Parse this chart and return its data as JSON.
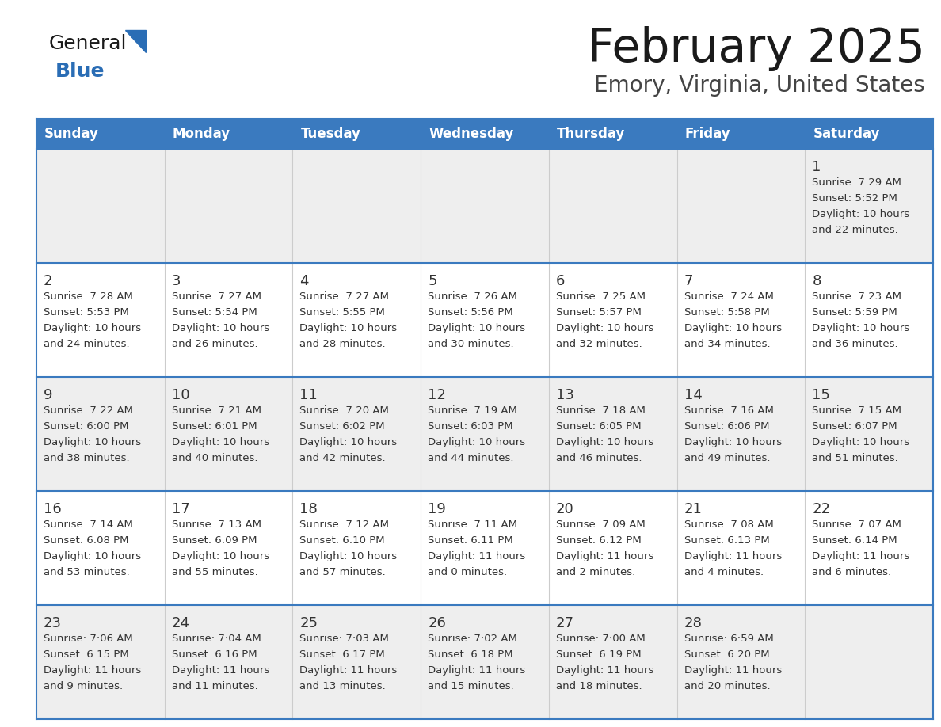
{
  "title": "February 2025",
  "subtitle": "Emory, Virginia, United States",
  "header_bg": "#3a7abf",
  "header_text_color": "#ffffff",
  "row_bg_odd": "#eeeeee",
  "row_bg_even": "#ffffff",
  "border_color": "#3a7abf",
  "cell_border_color": "#aaaaaa",
  "day_names": [
    "Sunday",
    "Monday",
    "Tuesday",
    "Wednesday",
    "Thursday",
    "Friday",
    "Saturday"
  ],
  "days": [
    {
      "day": 1,
      "col": 6,
      "row": 0,
      "sunrise": "7:29 AM",
      "sunset": "5:52 PM",
      "daylight": "10 hours and 22 minutes."
    },
    {
      "day": 2,
      "col": 0,
      "row": 1,
      "sunrise": "7:28 AM",
      "sunset": "5:53 PM",
      "daylight": "10 hours and 24 minutes."
    },
    {
      "day": 3,
      "col": 1,
      "row": 1,
      "sunrise": "7:27 AM",
      "sunset": "5:54 PM",
      "daylight": "10 hours and 26 minutes."
    },
    {
      "day": 4,
      "col": 2,
      "row": 1,
      "sunrise": "7:27 AM",
      "sunset": "5:55 PM",
      "daylight": "10 hours and 28 minutes."
    },
    {
      "day": 5,
      "col": 3,
      "row": 1,
      "sunrise": "7:26 AM",
      "sunset": "5:56 PM",
      "daylight": "10 hours and 30 minutes."
    },
    {
      "day": 6,
      "col": 4,
      "row": 1,
      "sunrise": "7:25 AM",
      "sunset": "5:57 PM",
      "daylight": "10 hours and 32 minutes."
    },
    {
      "day": 7,
      "col": 5,
      "row": 1,
      "sunrise": "7:24 AM",
      "sunset": "5:58 PM",
      "daylight": "10 hours and 34 minutes."
    },
    {
      "day": 8,
      "col": 6,
      "row": 1,
      "sunrise": "7:23 AM",
      "sunset": "5:59 PM",
      "daylight": "10 hours and 36 minutes."
    },
    {
      "day": 9,
      "col": 0,
      "row": 2,
      "sunrise": "7:22 AM",
      "sunset": "6:00 PM",
      "daylight": "10 hours and 38 minutes."
    },
    {
      "day": 10,
      "col": 1,
      "row": 2,
      "sunrise": "7:21 AM",
      "sunset": "6:01 PM",
      "daylight": "10 hours and 40 minutes."
    },
    {
      "day": 11,
      "col": 2,
      "row": 2,
      "sunrise": "7:20 AM",
      "sunset": "6:02 PM",
      "daylight": "10 hours and 42 minutes."
    },
    {
      "day": 12,
      "col": 3,
      "row": 2,
      "sunrise": "7:19 AM",
      "sunset": "6:03 PM",
      "daylight": "10 hours and 44 minutes."
    },
    {
      "day": 13,
      "col": 4,
      "row": 2,
      "sunrise": "7:18 AM",
      "sunset": "6:05 PM",
      "daylight": "10 hours and 46 minutes."
    },
    {
      "day": 14,
      "col": 5,
      "row": 2,
      "sunrise": "7:16 AM",
      "sunset": "6:06 PM",
      "daylight": "10 hours and 49 minutes."
    },
    {
      "day": 15,
      "col": 6,
      "row": 2,
      "sunrise": "7:15 AM",
      "sunset": "6:07 PM",
      "daylight": "10 hours and 51 minutes."
    },
    {
      "day": 16,
      "col": 0,
      "row": 3,
      "sunrise": "7:14 AM",
      "sunset": "6:08 PM",
      "daylight": "10 hours and 53 minutes."
    },
    {
      "day": 17,
      "col": 1,
      "row": 3,
      "sunrise": "7:13 AM",
      "sunset": "6:09 PM",
      "daylight": "10 hours and 55 minutes."
    },
    {
      "day": 18,
      "col": 2,
      "row": 3,
      "sunrise": "7:12 AM",
      "sunset": "6:10 PM",
      "daylight": "10 hours and 57 minutes."
    },
    {
      "day": 19,
      "col": 3,
      "row": 3,
      "sunrise": "7:11 AM",
      "sunset": "6:11 PM",
      "daylight": "11 hours and 0 minutes."
    },
    {
      "day": 20,
      "col": 4,
      "row": 3,
      "sunrise": "7:09 AM",
      "sunset": "6:12 PM",
      "daylight": "11 hours and 2 minutes."
    },
    {
      "day": 21,
      "col": 5,
      "row": 3,
      "sunrise": "7:08 AM",
      "sunset": "6:13 PM",
      "daylight": "11 hours and 4 minutes."
    },
    {
      "day": 22,
      "col": 6,
      "row": 3,
      "sunrise": "7:07 AM",
      "sunset": "6:14 PM",
      "daylight": "11 hours and 6 minutes."
    },
    {
      "day": 23,
      "col": 0,
      "row": 4,
      "sunrise": "7:06 AM",
      "sunset": "6:15 PM",
      "daylight": "11 hours and 9 minutes."
    },
    {
      "day": 24,
      "col": 1,
      "row": 4,
      "sunrise": "7:04 AM",
      "sunset": "6:16 PM",
      "daylight": "11 hours and 11 minutes."
    },
    {
      "day": 25,
      "col": 2,
      "row": 4,
      "sunrise": "7:03 AM",
      "sunset": "6:17 PM",
      "daylight": "11 hours and 13 minutes."
    },
    {
      "day": 26,
      "col": 3,
      "row": 4,
      "sunrise": "7:02 AM",
      "sunset": "6:18 PM",
      "daylight": "11 hours and 15 minutes."
    },
    {
      "day": 27,
      "col": 4,
      "row": 4,
      "sunrise": "7:00 AM",
      "sunset": "6:19 PM",
      "daylight": "11 hours and 18 minutes."
    },
    {
      "day": 28,
      "col": 5,
      "row": 4,
      "sunrise": "6:59 AM",
      "sunset": "6:20 PM",
      "daylight": "11 hours and 20 minutes."
    }
  ],
  "num_rows": 5,
  "num_cols": 7,
  "logo_general_color": "#1a1a1a",
  "logo_blue_color": "#2a6db5"
}
